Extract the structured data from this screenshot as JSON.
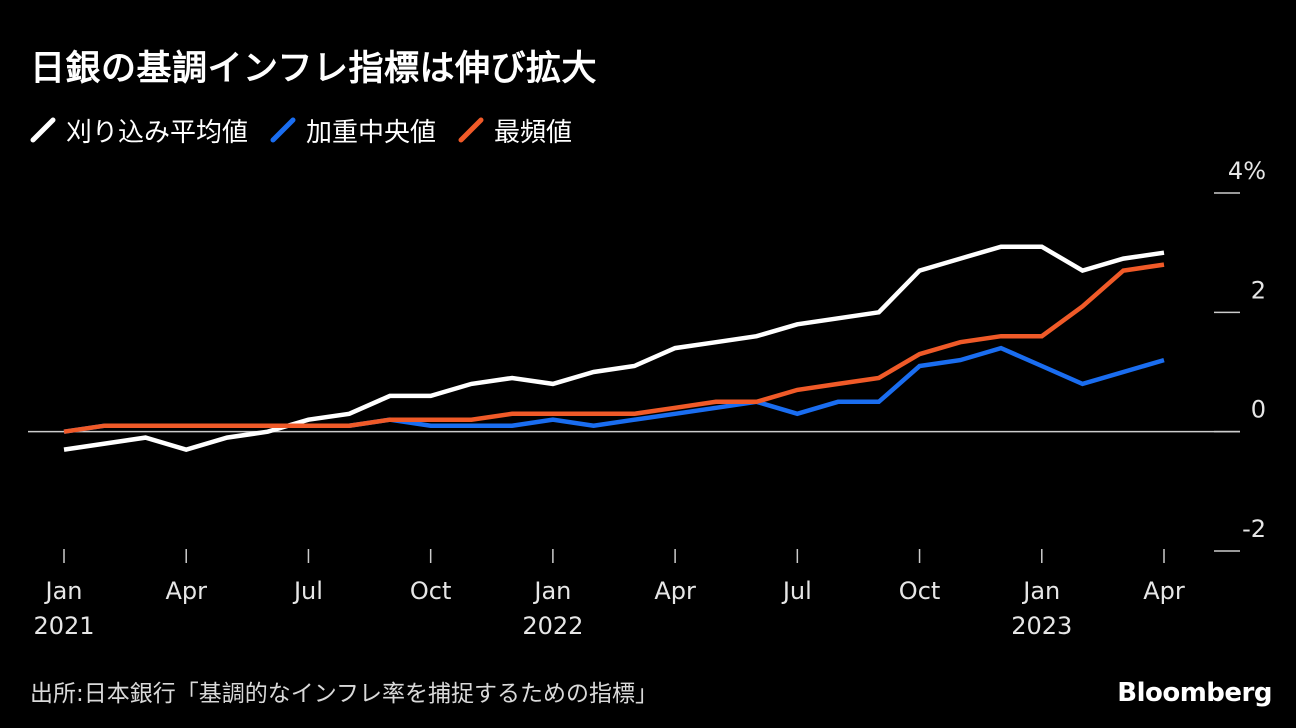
{
  "title": "日銀の基調インフレ指標は伸び拡大",
  "source": "出所:日本銀行「基調的なインフレ率を捕捉するための指標」",
  "brand": "Bloomberg",
  "colors": {
    "background": "#000000",
    "trimmed_mean": "#ffffff",
    "weighted_median": "#1a6df0",
    "mode": "#f05a28",
    "axis": "#cccccc"
  },
  "chart_data": {
    "type": "line",
    "x": [
      "2021-01",
      "2021-02",
      "2021-03",
      "2021-04",
      "2021-05",
      "2021-06",
      "2021-07",
      "2021-08",
      "2021-09",
      "2021-10",
      "2021-11",
      "2021-12",
      "2022-01",
      "2022-02",
      "2022-03",
      "2022-04",
      "2022-05",
      "2022-06",
      "2022-07",
      "2022-08",
      "2022-09",
      "2022-10",
      "2022-11",
      "2022-12",
      "2023-01",
      "2023-02",
      "2023-03",
      "2023-04"
    ],
    "series": [
      {
        "name": "刈り込み平均値",
        "color": "#ffffff",
        "values": [
          -0.3,
          -0.2,
          -0.1,
          -0.3,
          -0.1,
          0.0,
          0.2,
          0.3,
          0.6,
          0.6,
          0.8,
          0.9,
          0.8,
          1.0,
          1.1,
          1.4,
          1.5,
          1.6,
          1.8,
          1.9,
          2.0,
          2.7,
          2.9,
          3.1,
          3.1,
          2.7,
          2.9,
          3.0
        ]
      },
      {
        "name": "加重中央値",
        "color": "#1a6df0",
        "values": [
          0.0,
          0.1,
          0.1,
          0.1,
          0.1,
          0.1,
          0.1,
          0.1,
          0.2,
          0.1,
          0.1,
          0.1,
          0.2,
          0.1,
          0.2,
          0.3,
          0.4,
          0.5,
          0.3,
          0.5,
          0.5,
          1.1,
          1.2,
          1.4,
          1.1,
          0.8,
          1.0,
          1.2
        ]
      },
      {
        "name": "最頻値",
        "color": "#f05a28",
        "values": [
          0.0,
          0.1,
          0.1,
          0.1,
          0.1,
          0.1,
          0.1,
          0.1,
          0.2,
          0.2,
          0.2,
          0.3,
          0.3,
          0.3,
          0.3,
          0.4,
          0.5,
          0.5,
          0.7,
          0.8,
          0.9,
          1.3,
          1.5,
          1.6,
          1.6,
          2.1,
          2.7,
          2.8
        ]
      }
    ],
    "x_ticks": [
      {
        "month": "Jan",
        "year": "2021",
        "x": "2021-01"
      },
      {
        "month": "Apr",
        "year": "",
        "x": "2021-04"
      },
      {
        "month": "Jul",
        "year": "",
        "x": "2021-07"
      },
      {
        "month": "Oct",
        "year": "",
        "x": "2021-10"
      },
      {
        "month": "Jan",
        "year": "2022",
        "x": "2022-01"
      },
      {
        "month": "Apr",
        "year": "",
        "x": "2022-04"
      },
      {
        "month": "Jul",
        "year": "",
        "x": "2022-07"
      },
      {
        "month": "Oct",
        "year": "",
        "x": "2022-10"
      },
      {
        "month": "Jan",
        "year": "2023",
        "x": "2023-01"
      },
      {
        "month": "Apr",
        "year": "",
        "x": "2023-04"
      }
    ],
    "y_ticks": [
      {
        "value": 4,
        "label": "4%"
      },
      {
        "value": 2,
        "label": "2"
      },
      {
        "value": 0,
        "label": "0"
      },
      {
        "value": -2,
        "label": "-2"
      }
    ],
    "ylim": [
      -2,
      4
    ],
    "grid": false,
    "legend_position": "top-left",
    "title": "日銀の基調インフレ指標は伸び拡大"
  }
}
